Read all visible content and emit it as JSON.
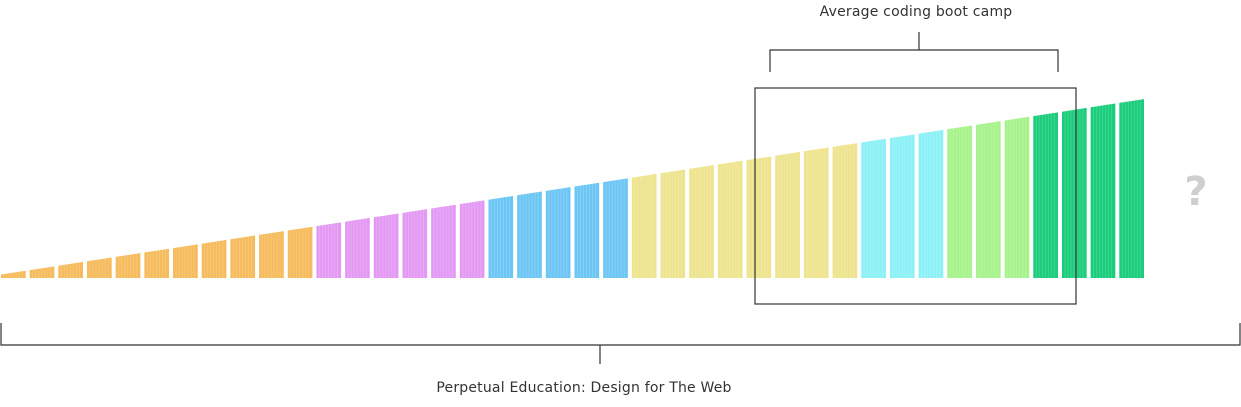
{
  "top_label": "Average coding boot camp",
  "bottom_label": "Perpetual Education: Design for The Web",
  "unknown_marker": "?",
  "colors": {
    "orange": "#f6bb5c",
    "purple": "#e399f3",
    "blue": "#6cc6f5",
    "yellow": "#eee48e",
    "cyan": "#8bf1f7",
    "green": "#a6f38c",
    "dark_green": "#19cd7b",
    "line": "#333333",
    "marker": "#cfcfcf"
  },
  "segments": [
    {
      "color": "orange",
      "count": 11
    },
    {
      "color": "purple",
      "count": 6
    },
    {
      "color": "blue",
      "count": 5
    },
    {
      "color": "yellow",
      "count": 8
    },
    {
      "color": "cyan",
      "count": 3
    },
    {
      "color": "green",
      "count": 3
    },
    {
      "color": "dark_green",
      "count": 4
    }
  ]
}
